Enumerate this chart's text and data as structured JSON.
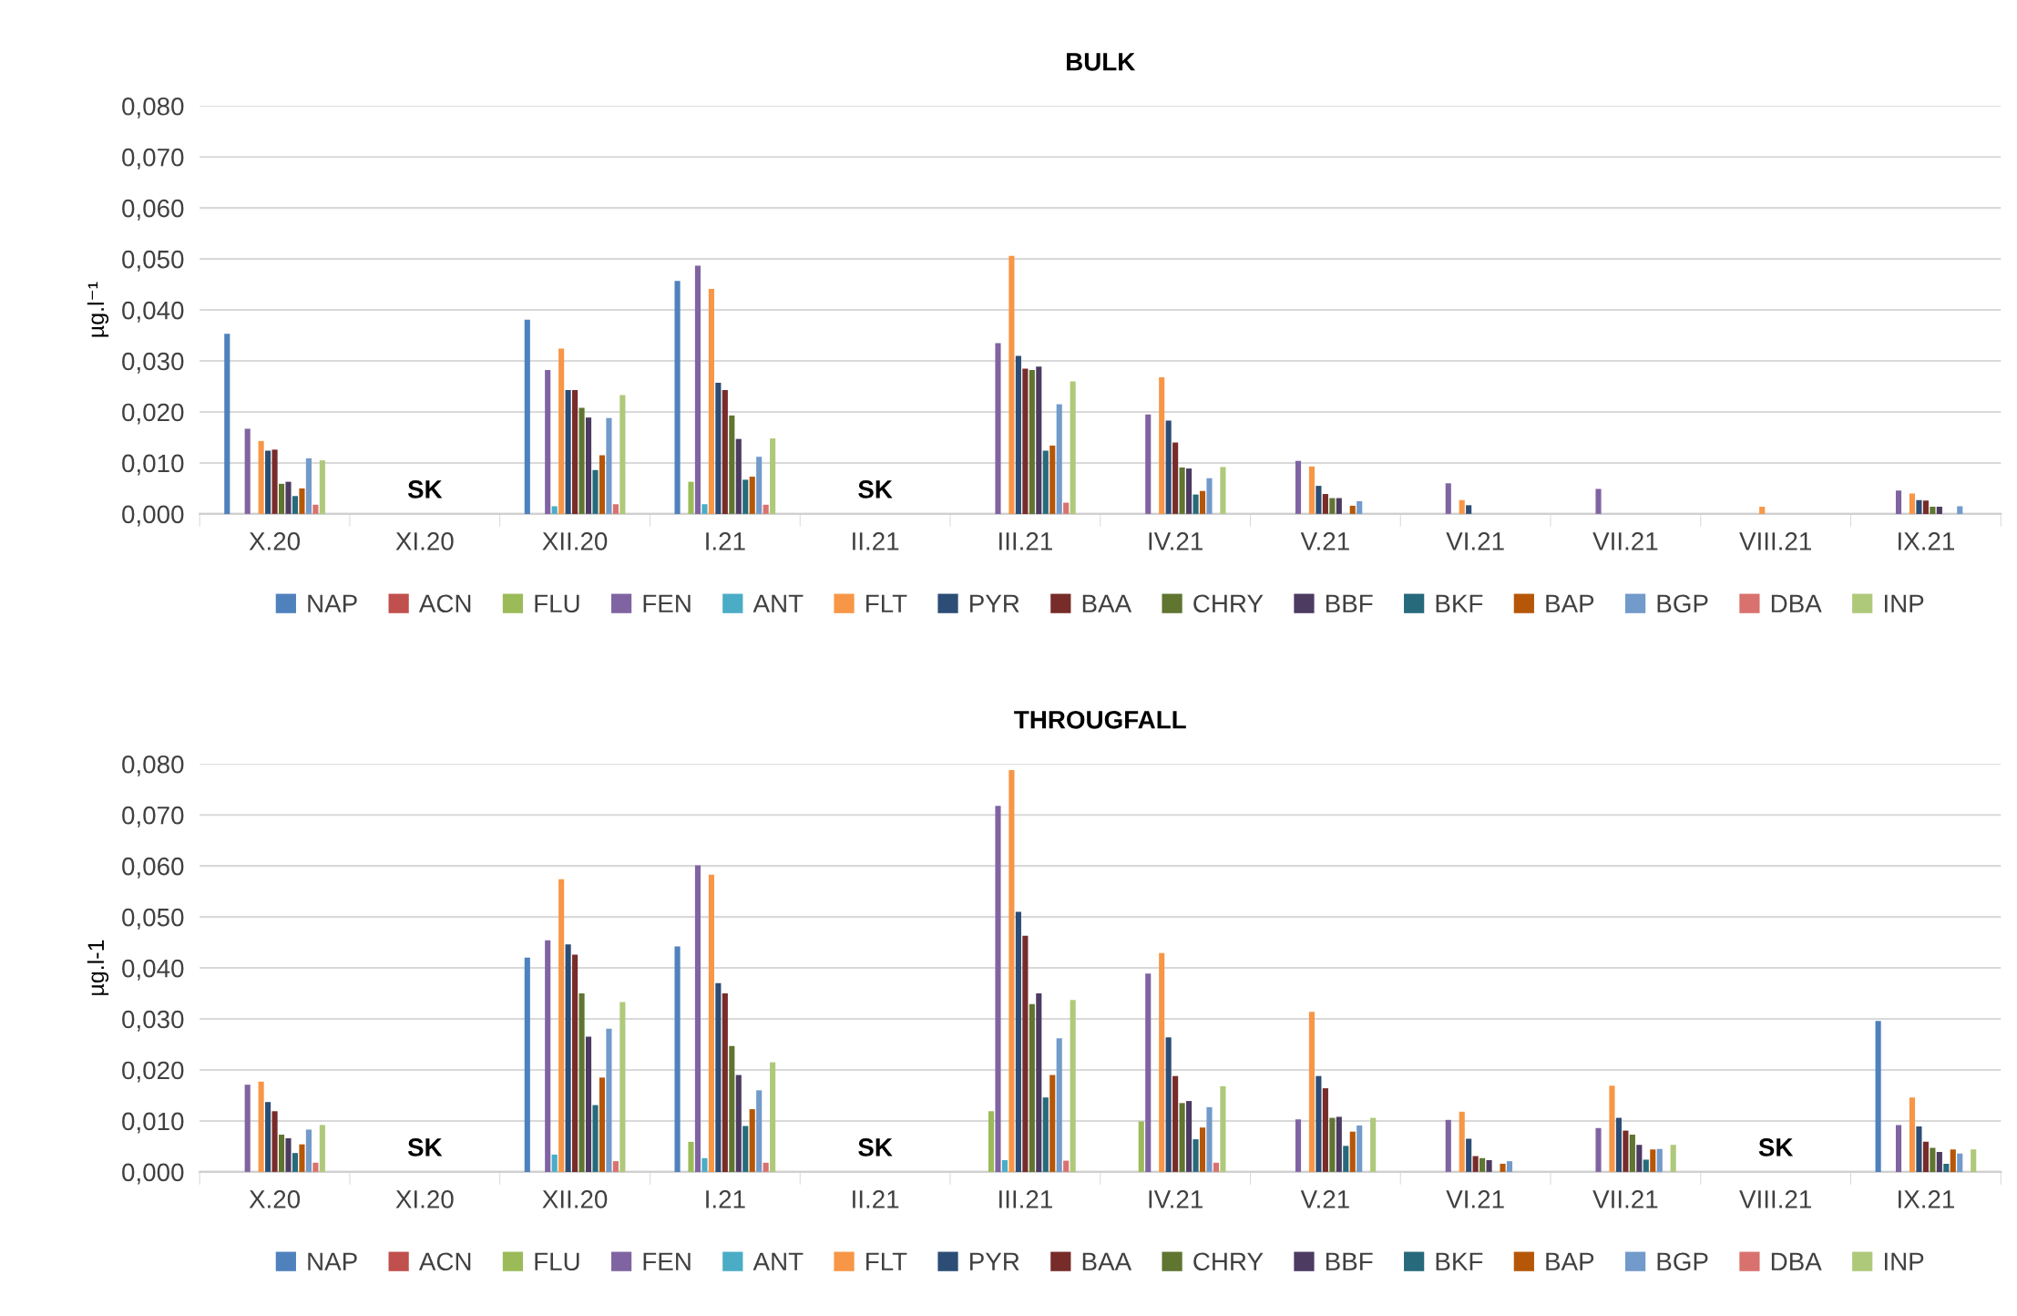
{
  "chart_data": [
    {
      "type": "bar",
      "title": "BULK",
      "ylabel": "µg.l⁻¹",
      "categories": [
        "X.20",
        "XI.20",
        "XII.20",
        "I.21",
        "II.21",
        "III.21",
        "IV.21",
        "V.21",
        "VI.21",
        "VII.21",
        "VIII.21",
        "IX.21"
      ],
      "ylim": [
        0,
        0.08
      ],
      "yticks": [
        {
          "value": 0,
          "label": "0,000"
        },
        {
          "value": 0.01,
          "label": "0,010"
        },
        {
          "value": 0.02,
          "label": "0,020"
        },
        {
          "value": 0.03,
          "label": "0,030"
        },
        {
          "value": 0.04,
          "label": "0,040"
        },
        {
          "value": 0.05,
          "label": "0,050"
        },
        {
          "value": 0.06,
          "label": "0,060"
        },
        {
          "value": 0.07,
          "label": "0,070"
        },
        {
          "value": 0.08,
          "label": "0,080"
        }
      ],
      "grid": "y",
      "legend": "bottom",
      "annotations": [
        "SK",
        "SK"
      ],
      "series": [
        {
          "name": "NAP",
          "color": "#4f81bd",
          "values": [
            0.0353,
            null,
            0.0381,
            0.0457,
            null,
            null,
            null,
            null,
            null,
            null,
            null,
            null
          ]
        },
        {
          "name": "ACN",
          "color": "#c0504d",
          "values": [
            null,
            null,
            null,
            null,
            null,
            null,
            null,
            null,
            null,
            null,
            null,
            null
          ]
        },
        {
          "name": "FLU",
          "color": "#9bbb59",
          "values": [
            null,
            null,
            null,
            0.0063,
            null,
            null,
            null,
            null,
            null,
            null,
            null,
            null
          ]
        },
        {
          "name": "FEN",
          "color": "#8064a2",
          "values": [
            0.0167,
            null,
            0.0282,
            0.0487,
            null,
            0.0335,
            0.0195,
            0.0104,
            0.006,
            0.0049,
            null,
            0.0046
          ]
        },
        {
          "name": "ANT",
          "color": "#4bacc6",
          "values": [
            null,
            null,
            0.0015,
            0.0019,
            null,
            null,
            null,
            null,
            null,
            null,
            null,
            null
          ]
        },
        {
          "name": "FLT",
          "color": "#f79646",
          "values": [
            0.0143,
            null,
            0.0324,
            0.0441,
            null,
            0.0506,
            0.0268,
            0.0093,
            0.0027,
            null,
            0.0014,
            0.004
          ]
        },
        {
          "name": "PYR",
          "color": "#2c4d75",
          "values": [
            0.0124,
            null,
            0.0243,
            0.0257,
            null,
            0.031,
            0.0183,
            0.0055,
            0.0017,
            null,
            null,
            0.0027
          ]
        },
        {
          "name": "BAA",
          "color": "#772c2a",
          "values": [
            0.0126,
            null,
            0.0243,
            0.0243,
            null,
            0.0285,
            0.014,
            0.0039,
            null,
            null,
            null,
            0.0026
          ]
        },
        {
          "name": "CHRY",
          "color": "#5f7530",
          "values": [
            0.0059,
            null,
            0.0208,
            0.0193,
            null,
            0.0282,
            0.0091,
            0.0031,
            null,
            null,
            null,
            0.0014
          ]
        },
        {
          "name": "BBF",
          "color": "#4d3b62",
          "values": [
            0.0063,
            null,
            0.0189,
            0.0147,
            null,
            0.0289,
            0.0089,
            0.0031,
            null,
            null,
            null,
            0.0014
          ]
        },
        {
          "name": "BKF",
          "color": "#276a7c",
          "values": [
            0.0035,
            null,
            0.0086,
            0.0067,
            null,
            0.0124,
            0.0038,
            null,
            null,
            null,
            null,
            null
          ]
        },
        {
          "name": "BAP",
          "color": "#b65708",
          "values": [
            0.005,
            null,
            0.0115,
            0.0073,
            null,
            0.0134,
            0.0045,
            0.0016,
            null,
            null,
            null,
            null
          ]
        },
        {
          "name": "BGP",
          "color": "#729aca",
          "values": [
            0.0109,
            null,
            0.0188,
            0.0112,
            null,
            0.0215,
            0.007,
            0.0025,
            null,
            null,
            null,
            0.0015
          ]
        },
        {
          "name": "DBA",
          "color": "#d9726f",
          "values": [
            0.0018,
            null,
            0.0019,
            0.0018,
            null,
            0.0022,
            null,
            null,
            null,
            null,
            null,
            null
          ]
        },
        {
          "name": "INP",
          "color": "#afc97a",
          "values": [
            0.0105,
            null,
            0.0233,
            0.0148,
            null,
            0.026,
            0.0092,
            null,
            null,
            null,
            null,
            null
          ]
        }
      ]
    },
    {
      "type": "bar",
      "title": "THROUGFALL",
      "ylabel": "µg.l-1",
      "categories": [
        "X.20",
        "XI.20",
        "XII.20",
        "I.21",
        "II.21",
        "III.21",
        "IV.21",
        "V.21",
        "VI.21",
        "VII.21",
        "VIII.21",
        "IX.21"
      ],
      "ylim": [
        0,
        0.08
      ],
      "yticks": [
        {
          "value": 0,
          "label": "0,000"
        },
        {
          "value": 0.01,
          "label": "0,010"
        },
        {
          "value": 0.02,
          "label": "0,020"
        },
        {
          "value": 0.03,
          "label": "0,030"
        },
        {
          "value": 0.04,
          "label": "0,040"
        },
        {
          "value": 0.05,
          "label": "0,050"
        },
        {
          "value": 0.06,
          "label": "0,060"
        },
        {
          "value": 0.07,
          "label": "0,070"
        },
        {
          "value": 0.08,
          "label": "0,080"
        }
      ],
      "grid": "y",
      "legend": "bottom",
      "annotations": [
        "SK",
        "SK",
        "SK"
      ],
      "series": [
        {
          "name": "NAP",
          "color": "#4f81bd",
          "values": [
            null,
            null,
            0.042,
            0.0442,
            null,
            null,
            null,
            null,
            null,
            null,
            null,
            0.0296
          ]
        },
        {
          "name": "ACN",
          "color": "#c0504d",
          "values": [
            null,
            null,
            null,
            null,
            null,
            null,
            null,
            null,
            null,
            null,
            null,
            null
          ]
        },
        {
          "name": "FLU",
          "color": "#9bbb59",
          "values": [
            null,
            null,
            null,
            0.0059,
            null,
            0.0119,
            0.0099,
            null,
            null,
            null,
            null,
            null
          ]
        },
        {
          "name": "FEN",
          "color": "#8064a2",
          "values": [
            0.0171,
            null,
            0.0454,
            0.0601,
            null,
            0.0718,
            0.0389,
            0.0103,
            0.0102,
            0.0086,
            null,
            0.0092
          ]
        },
        {
          "name": "ANT",
          "color": "#4bacc6",
          "values": [
            null,
            null,
            0.0034,
            0.0027,
            null,
            0.0023,
            null,
            null,
            null,
            null,
            null,
            null
          ]
        },
        {
          "name": "FLT",
          "color": "#f79646",
          "values": [
            0.0177,
            null,
            0.0574,
            0.0583,
            null,
            0.0788,
            0.0429,
            0.0314,
            0.0118,
            0.0169,
            null,
            0.0146
          ]
        },
        {
          "name": "PYR",
          "color": "#2c4d75",
          "values": [
            0.0137,
            null,
            0.0446,
            0.037,
            null,
            0.051,
            0.0264,
            0.0188,
            0.0065,
            0.0106,
            null,
            0.0089
          ]
        },
        {
          "name": "BAA",
          "color": "#772c2a",
          "values": [
            0.0119,
            null,
            0.0426,
            0.035,
            null,
            0.0463,
            0.0188,
            0.0164,
            0.0031,
            0.0081,
            null,
            0.0059
          ]
        },
        {
          "name": "CHRY",
          "color": "#5f7530",
          "values": [
            0.0073,
            null,
            0.035,
            0.0247,
            null,
            0.0329,
            0.0135,
            0.0106,
            0.0027,
            0.0073,
            null,
            0.0047
          ]
        },
        {
          "name": "BBF",
          "color": "#4d3b62",
          "values": [
            0.0066,
            null,
            0.0265,
            0.019,
            null,
            0.035,
            0.0139,
            0.0108,
            0.0023,
            0.0053,
            null,
            0.0039
          ]
        },
        {
          "name": "BKF",
          "color": "#276a7c",
          "values": [
            0.0037,
            null,
            0.0131,
            0.009,
            null,
            0.0146,
            0.0064,
            0.0051,
            null,
            0.0024,
            null,
            0.0016
          ]
        },
        {
          "name": "BAP",
          "color": "#b65708",
          "values": [
            0.0054,
            null,
            0.0185,
            0.0123,
            null,
            0.019,
            0.0087,
            0.0079,
            0.0016,
            0.0044,
            null,
            0.0044
          ]
        },
        {
          "name": "BGP",
          "color": "#729aca",
          "values": [
            0.0083,
            null,
            0.0281,
            0.016,
            null,
            0.0262,
            0.0127,
            0.0091,
            0.0021,
            0.0045,
            null,
            0.0036
          ]
        },
        {
          "name": "DBA",
          "color": "#d9726f",
          "values": [
            0.0018,
            null,
            0.0021,
            0.0018,
            null,
            0.0022,
            0.0018,
            null,
            null,
            null,
            null,
            null
          ]
        },
        {
          "name": "INP",
          "color": "#afc97a",
          "values": [
            0.0092,
            null,
            0.0333,
            0.0215,
            null,
            0.0337,
            0.0168,
            0.0106,
            null,
            0.0053,
            null,
            0.0044
          ]
        }
      ]
    }
  ]
}
